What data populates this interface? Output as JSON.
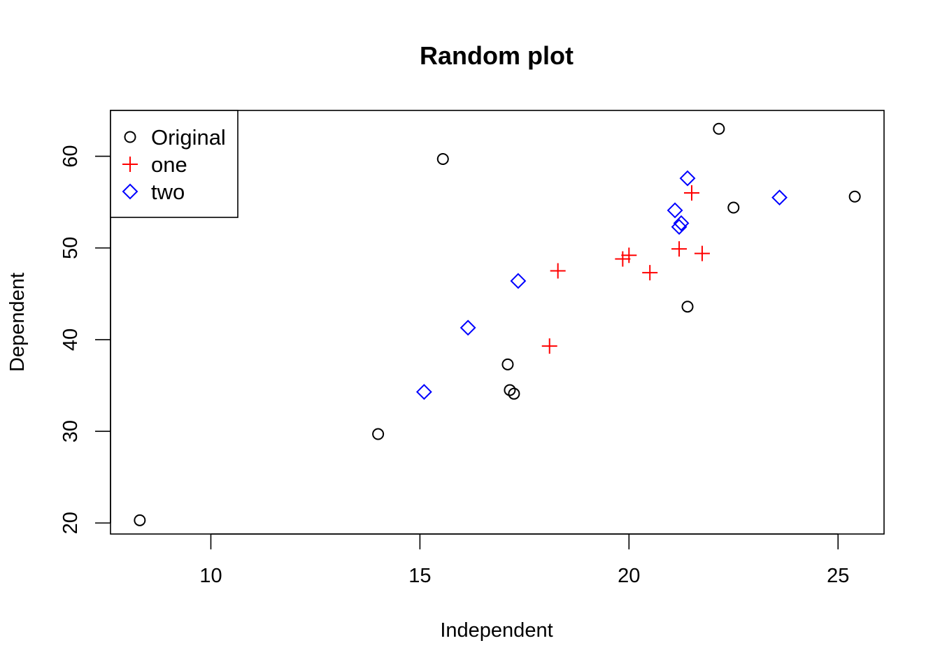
{
  "chart_data": {
    "type": "scatter",
    "title": "Random plot",
    "xlabel": "Independent",
    "ylabel": "Dependent",
    "xlim": [
      7.6,
      26.1
    ],
    "ylim": [
      18.8,
      65.0
    ],
    "xticks": [
      10,
      15,
      20,
      25
    ],
    "yticks": [
      20,
      30,
      40,
      50,
      60
    ],
    "grid": false,
    "legend_position": "top-left",
    "series": [
      {
        "name": "Original",
        "marker": "circle",
        "color": "#000000",
        "points": [
          {
            "x": 8.3,
            "y": 20.3
          },
          {
            "x": 14.0,
            "y": 29.7
          },
          {
            "x": 15.55,
            "y": 59.7
          },
          {
            "x": 17.1,
            "y": 37.3
          },
          {
            "x": 17.15,
            "y": 34.5
          },
          {
            "x": 17.25,
            "y": 34.1
          },
          {
            "x": 21.4,
            "y": 43.6
          },
          {
            "x": 22.15,
            "y": 63.0
          },
          {
            "x": 22.5,
            "y": 54.4
          },
          {
            "x": 25.4,
            "y": 55.6
          }
        ]
      },
      {
        "name": "one",
        "marker": "plus",
        "color": "#ff0000",
        "points": [
          {
            "x": 18.1,
            "y": 39.3
          },
          {
            "x": 18.3,
            "y": 47.5
          },
          {
            "x": 19.85,
            "y": 48.8
          },
          {
            "x": 20.0,
            "y": 49.2
          },
          {
            "x": 20.5,
            "y": 47.3
          },
          {
            "x": 21.2,
            "y": 49.9
          },
          {
            "x": 21.5,
            "y": 56.0
          },
          {
            "x": 21.75,
            "y": 49.4
          }
        ]
      },
      {
        "name": "two",
        "marker": "diamond",
        "color": "#0000ff",
        "points": [
          {
            "x": 15.1,
            "y": 34.3
          },
          {
            "x": 16.15,
            "y": 41.3
          },
          {
            "x": 17.35,
            "y": 46.4
          },
          {
            "x": 21.1,
            "y": 54.1
          },
          {
            "x": 21.2,
            "y": 52.3
          },
          {
            "x": 21.25,
            "y": 52.7
          },
          {
            "x": 21.4,
            "y": 57.6
          },
          {
            "x": 23.6,
            "y": 55.5
          }
        ]
      }
    ]
  }
}
